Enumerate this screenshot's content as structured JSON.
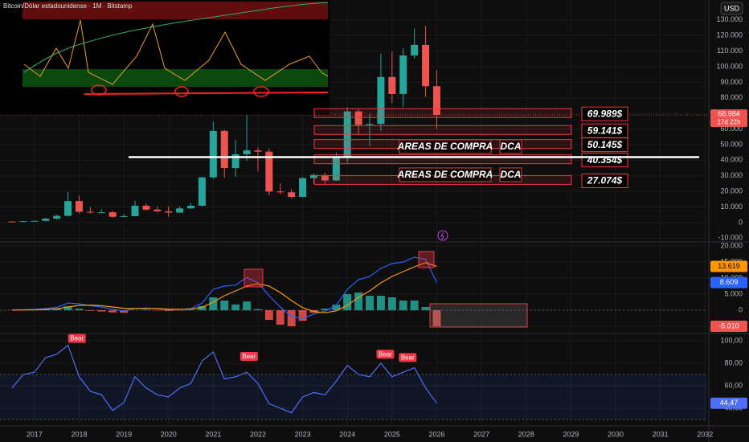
{
  "chart_data": [
    {
      "type": "candlestick",
      "title": "Bitcoin/Dólar estadounidense · 1M · Bitstamp",
      "currency": "USD",
      "up_color": "#26a69a",
      "down_color": "#ef5350",
      "xlim": [
        2016.23,
        2032.05
      ],
      "ylim": [
        -11900,
        142800
      ],
      "yticks": [
        {
          "value": -10000,
          "label": "-10.000"
        },
        0,
        {
          "value": 10000,
          "label": "10.000"
        },
        {
          "value": 20000,
          "label": "20.000"
        },
        {
          "value": 30000,
          "label": "30.000"
        },
        {
          "value": 40000,
          "label": "40.000"
        },
        {
          "value": 50000,
          "label": "50.000"
        },
        {
          "value": 60000,
          "label": "60.000"
        },
        {
          "value": 70000,
          "label": "70.000"
        },
        {
          "value": 80000,
          "label": "80.000"
        },
        {
          "value": 90000,
          "label": "90.000"
        },
        {
          "value": 100000,
          "label": "100.000"
        },
        {
          "value": 110000,
          "label": "110.000"
        },
        {
          "value": 120000,
          "label": "120.000"
        },
        {
          "value": 130000,
          "label": "130.000"
        }
      ],
      "grid": true,
      "x": [
        2016.5,
        2016.75,
        2017,
        2017.25,
        2017.5,
        2017.75,
        2018,
        2018.25,
        2018.5,
        2018.75,
        2019,
        2019.25,
        2019.5,
        2019.75,
        2020,
        2020.25,
        2020.5,
        2020.75,
        2021,
        2021.25,
        2021.5,
        2021.75,
        2022,
        2022.25,
        2022.5,
        2022.75,
        2023,
        2023.25,
        2023.5,
        2023.75,
        2024,
        2024.25,
        2024.5,
        2024.75,
        2025,
        2025.25,
        2025.5,
        2025.75,
        2026
      ],
      "open": [
        670,
        610,
        960,
        1080,
        2500,
        4300,
        13800,
        6900,
        6400,
        6600,
        3700,
        4100,
        10800,
        8300,
        7200,
        6400,
        9100,
        10800,
        29000,
        58800,
        35000,
        43800,
        46300,
        45500,
        19900,
        19400,
        16500,
        28500,
        30500,
        27000,
        42300,
        71300,
        62700,
        63300,
        93400,
        82500,
        107200,
        114000,
        87500
      ],
      "high": [
        780,
        980,
        1300,
        3000,
        5000,
        19700,
        17200,
        9900,
        8500,
        7400,
        5300,
        13900,
        12300,
        10400,
        10500,
        10400,
        12500,
        29300,
        64800,
        59500,
        53000,
        69000,
        48200,
        47400,
        25200,
        21500,
        29200,
        31400,
        31800,
        45000,
        73800,
        72800,
        70000,
        108400,
        109600,
        111900,
        124500,
        126200,
        97900
      ],
      "low": [
        470,
        590,
        750,
        1080,
        1800,
        4100,
        5900,
        5800,
        5900,
        3100,
        3300,
        4100,
        7700,
        6500,
        3800,
        6200,
        9000,
        10400,
        28100,
        28800,
        29300,
        39600,
        32900,
        17600,
        18200,
        15500,
        16500,
        24800,
        24900,
        26900,
        38500,
        56500,
        49000,
        58900,
        76600,
        74400,
        105300,
        80600,
        60000
      ],
      "close": [
        610,
        960,
        1080,
        2500,
        4300,
        13800,
        6900,
        6400,
        6600,
        3700,
        4100,
        10800,
        8300,
        7200,
        6400,
        9100,
        10800,
        29000,
        58800,
        35000,
        43800,
        46300,
        45500,
        19900,
        19400,
        16500,
        28500,
        30500,
        27000,
        42300,
        71300,
        62700,
        63300,
        93400,
        82500,
        107200,
        114000,
        87500,
        68984
      ],
      "last_label": "68.984",
      "countdown": "17d 22h",
      "levels": [
        69989,
        59141,
        50145,
        40354,
        27074
      ],
      "level_labels": [
        "69.989$",
        "59.141$",
        "50.145$",
        "40.354$",
        "27.074$"
      ],
      "support_line": 42000,
      "annotations": [
        "AREAS DE COMPRA",
        "DCA",
        "AREAS DE COMPRA",
        "DCA"
      ]
    },
    {
      "type": "combo",
      "xlim": [
        2016.23,
        2032.05
      ],
      "ylim": [
        -6750,
        20750
      ],
      "yticks": [
        {
          "value": -5000,
          "label": "-5.000"
        },
        0,
        {
          "value": 5000,
          "label": "5.000"
        },
        {
          "value": 10000,
          "label": "10.000"
        },
        {
          "value": 15000,
          "label": "15.000"
        },
        {
          "value": 20000,
          "label": "20.000"
        }
      ],
      "x": [
        2016.5,
        2016.75,
        2017,
        2017.25,
        2017.5,
        2017.75,
        2018,
        2018.25,
        2018.5,
        2018.75,
        2019,
        2019.25,
        2019.5,
        2019.75,
        2020,
        2020.25,
        2020.5,
        2020.75,
        2021,
        2021.25,
        2021.5,
        2021.75,
        2022,
        2022.25,
        2022.5,
        2022.75,
        2023,
        2023.25,
        2023.5,
        2023.75,
        2024,
        2024.25,
        2024.5,
        2024.75,
        2025,
        2025.25,
        2025.5,
        2025.75,
        2026
      ],
      "series": [
        {
          "kind": "bar",
          "color": "#26a69a",
          "negative_color": "#ef5350",
          "last_label": "-5.010",
          "values": [
            50,
            70,
            120,
            250,
            450,
            1200,
            500,
            -200,
            -400,
            -700,
            -800,
            0,
            150,
            -100,
            -250,
            -100,
            150,
            1300,
            4000,
            3000,
            1800,
            2700,
            300,
            -3000,
            -4500,
            -5000,
            -3300,
            -800,
            500,
            1700,
            5000,
            5500,
            4500,
            4500,
            4000,
            3000,
            3000,
            1000,
            -5010
          ]
        },
        {
          "kind": "line",
          "color": "#2962ff",
          "last_label": "8.609",
          "values": [
            100,
            150,
            250,
            500,
            900,
            2200,
            2000,
            1400,
            1000,
            300,
            -200,
            500,
            700,
            400,
            100,
            200,
            500,
            2200,
            6500,
            7500,
            7800,
            10200,
            8500,
            4500,
            1000,
            -2000,
            -2500,
            -1200,
            -300,
            1500,
            6500,
            9500,
            10500,
            13000,
            14500,
            15000,
            16500,
            15800,
            8609
          ]
        },
        {
          "kind": "line",
          "color": "#ff9800",
          "last_label": "13.619",
          "values": [
            50,
            80,
            130,
            250,
            450,
            1000,
            1500,
            1600,
            1400,
            1000,
            600,
            500,
            550,
            500,
            350,
            300,
            350,
            900,
            2500,
            4500,
            6000,
            7500,
            8200,
            7500,
            5500,
            3000,
            800,
            -400,
            -800,
            -200,
            1500,
            4000,
            6000,
            8500,
            10500,
            12000,
            13500,
            14800,
            13619
          ]
        }
      ]
    },
    {
      "type": "line",
      "xlim": [
        2016.23,
        2032.05
      ],
      "ylim": [
        25.7,
        104.3
      ],
      "yticks": [
        {
          "value": 40,
          "label": "40,00"
        },
        {
          "value": 60,
          "label": "60,00"
        },
        {
          "value": 80,
          "label": "80,00"
        },
        {
          "value": 100,
          "label": "100,00"
        }
      ],
      "xticks": [
        2017,
        2018,
        2019,
        2020,
        2021,
        2022,
        2023,
        2024,
        2025,
        2026,
        2027,
        2028,
        2029,
        2030,
        2031,
        2032
      ],
      "band": [
        30,
        70
      ],
      "x": [
        2016.5,
        2016.75,
        2017,
        2017.25,
        2017.5,
        2017.75,
        2018,
        2018.25,
        2018.5,
        2018.75,
        2019,
        2019.25,
        2019.5,
        2019.75,
        2020,
        2020.25,
        2020.5,
        2020.75,
        2021,
        2021.25,
        2021.5,
        2021.75,
        2022,
        2022.25,
        2022.5,
        2022.75,
        2023,
        2023.25,
        2023.5,
        2023.75,
        2024,
        2024.25,
        2024.5,
        2024.75,
        2025,
        2025.25,
        2025.5,
        2025.75,
        2026
      ],
      "series": [
        {
          "color": "#4f6ef7",
          "last_label": "44,47",
          "values": [
            58,
            70,
            72,
            85,
            88,
            96,
            68,
            55,
            52,
            38,
            45,
            68,
            58,
            52,
            50,
            58,
            62,
            82,
            90,
            66,
            68,
            72,
            62,
            44,
            40,
            36,
            50,
            54,
            52,
            64,
            78,
            70,
            68,
            80,
            68,
            72,
            76,
            58,
            44.47
          ]
        }
      ],
      "annotations": [
        {
          "text": "Bear",
          "x": 2017.95,
          "y": 96
        },
        {
          "text": "Bear",
          "x": 2021.8,
          "y": 80
        },
        {
          "text": "Bear",
          "x": 2024.85,
          "y": 82
        },
        {
          "text": "Bear",
          "x": 2025.35,
          "y": 79
        }
      ]
    }
  ]
}
